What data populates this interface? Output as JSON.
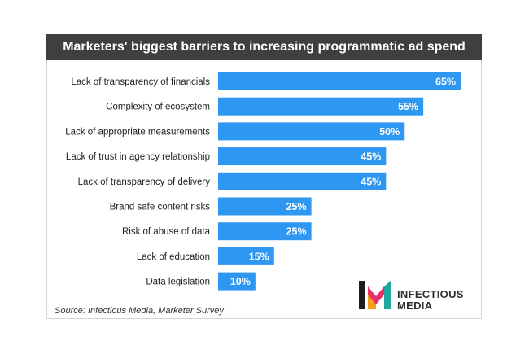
{
  "title": "Marketers' biggest barriers to increasing programmatic ad spend",
  "source": "Source: Infectious Media, Marketer Survey",
  "logo": {
    "line1": "INFECTIOUS",
    "line2": "MEDIA",
    "mark_text": "IM"
  },
  "colors": {
    "bar": "#2e97f2",
    "title_bg": "#3f3f3f"
  },
  "chart_data": {
    "type": "bar",
    "orientation": "horizontal",
    "title": "Marketers' biggest barriers to increasing programmatic ad spend",
    "categories": [
      "Lack of transparency of financials",
      "Complexity of ecosystem",
      "Lack of appropriate measurements",
      "Lack of trust in agency relationship",
      "Lack of transparency of delivery",
      "Brand safe content risks",
      "Risk of abuse of data",
      "Lack of education",
      "Data legislation"
    ],
    "values": [
      65,
      55,
      50,
      45,
      45,
      25,
      25,
      15,
      10
    ],
    "data_labels": [
      "65%",
      "55%",
      "50%",
      "45%",
      "45%",
      "25%",
      "25%",
      "15%",
      "10%"
    ],
    "xlim": [
      0,
      65
    ],
    "grid": false,
    "legend": "none"
  }
}
